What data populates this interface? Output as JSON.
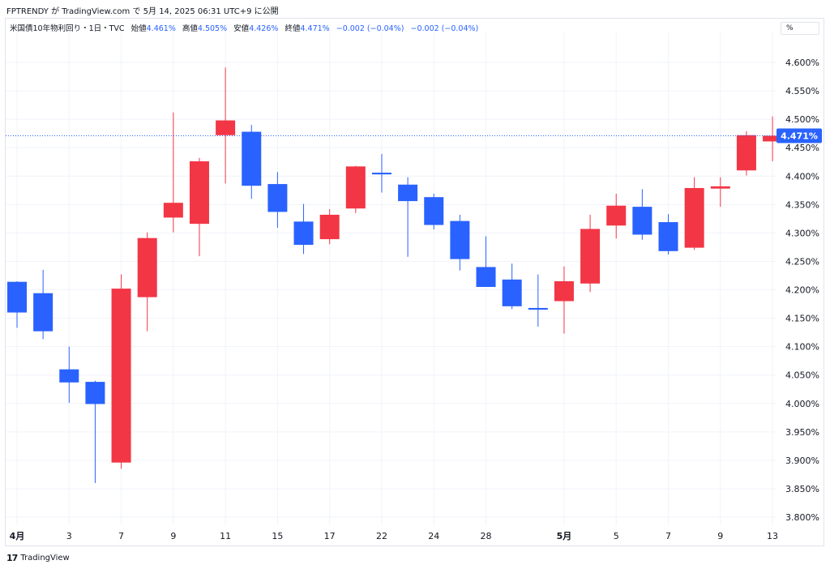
{
  "header": {
    "publish_line": "FPTRENDY が TradingView.com で 5月 14, 2025 06:31 UTC+9 に公開"
  },
  "legend": {
    "symbol": "米国債10年物利回り・1日・TVC",
    "open_label": "始値",
    "open_value": "4.461%",
    "high_label": "高値",
    "high_value": "4.505%",
    "low_label": "安値",
    "low_value": "4.426%",
    "close_label": "終値",
    "close_value": "4.471%",
    "change": "−0.002 (−0.04%)",
    "change2": "−0.002 (−0.04%)"
  },
  "unit_button": "%",
  "last_price_label": "4.471%",
  "footer": {
    "logo_mark": "17",
    "logo_text": "TradingView"
  },
  "colors": {
    "up": "#2962ff",
    "down": "#f23645",
    "grid": "#f0f3fa",
    "last_price": "#2962ff"
  },
  "chart_data": {
    "type": "candlestick",
    "title": "米国債10年物利回り・1日・TVC",
    "ylabel": "%",
    "ylim": [
      3.775,
      4.625
    ],
    "y_ticks": [
      "3.800%",
      "3.850%",
      "3.900%",
      "3.950%",
      "4.000%",
      "4.050%",
      "4.100%",
      "4.150%",
      "4.200%",
      "4.250%",
      "4.300%",
      "4.350%",
      "4.400%",
      "4.450%",
      "4.500%",
      "4.550%",
      "4.600%"
    ],
    "x_ticks": [
      {
        "label": "4月",
        "index": 0,
        "bold": true
      },
      {
        "label": "3",
        "index": 2
      },
      {
        "label": "7",
        "index": 4
      },
      {
        "label": "9",
        "index": 6
      },
      {
        "label": "11",
        "index": 8
      },
      {
        "label": "15",
        "index": 10
      },
      {
        "label": "17",
        "index": 12
      },
      {
        "label": "22",
        "index": 14
      },
      {
        "label": "24",
        "index": 16
      },
      {
        "label": "28",
        "index": 18
      },
      {
        "label": "5月",
        "index": 21,
        "bold": true
      },
      {
        "label": "5",
        "index": 23
      },
      {
        "label": "7",
        "index": 25
      },
      {
        "label": "9",
        "index": 27
      },
      {
        "label": "13",
        "index": 29
      }
    ],
    "last_price": 4.471,
    "candles": [
      {
        "date": "4/1",
        "open": 4.214,
        "high": 4.215,
        "low": 4.133,
        "close": 4.16
      },
      {
        "date": "4/2",
        "open": 4.194,
        "high": 4.235,
        "low": 4.113,
        "close": 4.127
      },
      {
        "date": "4/3",
        "open": 4.06,
        "high": 4.1,
        "low": 4.001,
        "close": 4.037
      },
      {
        "date": "4/4",
        "open": 4.038,
        "high": 4.04,
        "low": 3.86,
        "close": 3.999
      },
      {
        "date": "4/7",
        "open": 3.896,
        "high": 4.227,
        "low": 3.885,
        "close": 4.202
      },
      {
        "date": "4/8",
        "open": 4.187,
        "high": 4.301,
        "low": 4.127,
        "close": 4.291
      },
      {
        "date": "4/9",
        "open": 4.327,
        "high": 4.512,
        "low": 4.301,
        "close": 4.353
      },
      {
        "date": "4/10",
        "open": 4.316,
        "high": 4.432,
        "low": 4.259,
        "close": 4.426
      },
      {
        "date": "4/11",
        "open": 4.472,
        "high": 4.591,
        "low": 4.387,
        "close": 4.498
      },
      {
        "date": "4/14",
        "open": 4.478,
        "high": 4.49,
        "low": 4.36,
        "close": 4.383
      },
      {
        "date": "4/15",
        "open": 4.386,
        "high": 4.407,
        "low": 4.309,
        "close": 4.337
      },
      {
        "date": "4/16",
        "open": 4.32,
        "high": 4.351,
        "low": 4.263,
        "close": 4.279
      },
      {
        "date": "4/17",
        "open": 4.289,
        "high": 4.342,
        "low": 4.28,
        "close": 4.332
      },
      {
        "date": "4/21",
        "open": 4.343,
        "high": 4.418,
        "low": 4.335,
        "close": 4.417
      },
      {
        "date": "4/22",
        "open": 4.406,
        "high": 4.439,
        "low": 4.371,
        "close": 4.403
      },
      {
        "date": "4/23",
        "open": 4.385,
        "high": 4.398,
        "low": 4.258,
        "close": 4.356
      },
      {
        "date": "4/24",
        "open": 4.363,
        "high": 4.369,
        "low": 4.306,
        "close": 4.314
      },
      {
        "date": "4/25",
        "open": 4.321,
        "high": 4.332,
        "low": 4.234,
        "close": 4.254
      },
      {
        "date": "4/28",
        "open": 4.24,
        "high": 4.294,
        "low": 4.205,
        "close": 4.205
      },
      {
        "date": "4/29",
        "open": 4.218,
        "high": 4.246,
        "low": 4.166,
        "close": 4.171
      },
      {
        "date": "4/30",
        "open": 4.168,
        "high": 4.227,
        "low": 4.135,
        "close": 4.165
      },
      {
        "date": "5/1",
        "open": 4.18,
        "high": 4.241,
        "low": 4.123,
        "close": 4.215
      },
      {
        "date": "5/2",
        "open": 4.211,
        "high": 4.332,
        "low": 4.196,
        "close": 4.307
      },
      {
        "date": "5/5",
        "open": 4.313,
        "high": 4.369,
        "low": 4.29,
        "close": 4.348
      },
      {
        "date": "5/6",
        "open": 4.346,
        "high": 4.377,
        "low": 4.288,
        "close": 4.297
      },
      {
        "date": "5/7",
        "open": 4.319,
        "high": 4.333,
        "low": 4.262,
        "close": 4.268
      },
      {
        "date": "5/8",
        "open": 4.274,
        "high": 4.398,
        "low": 4.27,
        "close": 4.379
      },
      {
        "date": "5/9",
        "open": 4.378,
        "high": 4.398,
        "low": 4.346,
        "close": 4.382
      },
      {
        "date": "5/12",
        "open": 4.41,
        "high": 4.479,
        "low": 4.401,
        "close": 4.472
      },
      {
        "date": "5/13",
        "open": 4.461,
        "high": 4.505,
        "low": 4.426,
        "close": 4.471
      }
    ]
  }
}
